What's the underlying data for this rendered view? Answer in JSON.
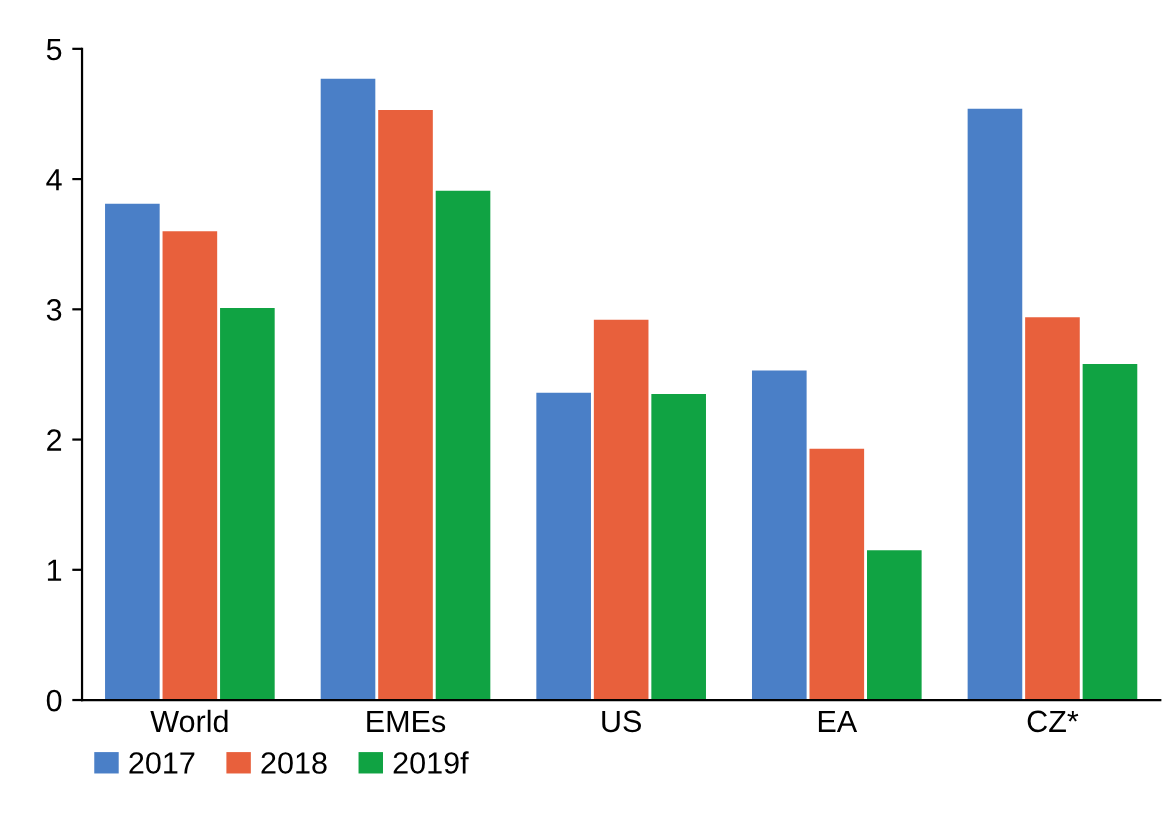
{
  "chart_data": {
    "type": "bar",
    "categories": [
      "World",
      "EMEs",
      "US",
      "EA",
      "CZ*"
    ],
    "series": [
      {
        "name": "2017",
        "color": "#4a7fc7",
        "values": [
          3.81,
          4.77,
          2.36,
          2.53,
          4.54
        ]
      },
      {
        "name": "2018",
        "color": "#e8603c",
        "values": [
          3.6,
          4.53,
          2.92,
          1.93,
          2.94
        ]
      },
      {
        "name": "2019f",
        "color": "#10a343",
        "values": [
          3.01,
          3.91,
          2.35,
          1.15,
          2.58
        ]
      }
    ],
    "ylim": [
      0,
      5
    ],
    "yticks": [
      0,
      1,
      2,
      3,
      4,
      5
    ],
    "grid": false,
    "legend": "bottom left"
  }
}
